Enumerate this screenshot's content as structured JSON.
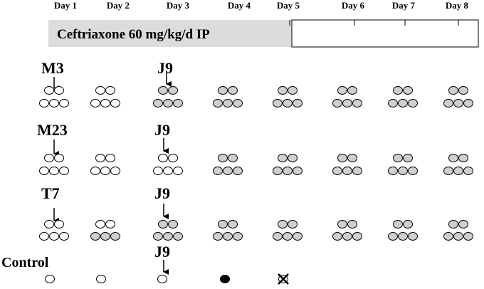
{
  "timeline": {
    "days": [
      "Day 1",
      "Day 2",
      "Day 3",
      "Day 4",
      "Day 5",
      "Day 6",
      "Day 7",
      "Day 8"
    ],
    "treatment": "Ceftriaxone 60 mg/kg/d IP"
  },
  "groups": [
    {
      "label": "M3",
      "marker": "J9"
    },
    {
      "label": "M23",
      "marker": "J9"
    },
    {
      "label": "T7",
      "marker": "J9"
    },
    {
      "label": "Control",
      "marker": "J9"
    }
  ]
}
